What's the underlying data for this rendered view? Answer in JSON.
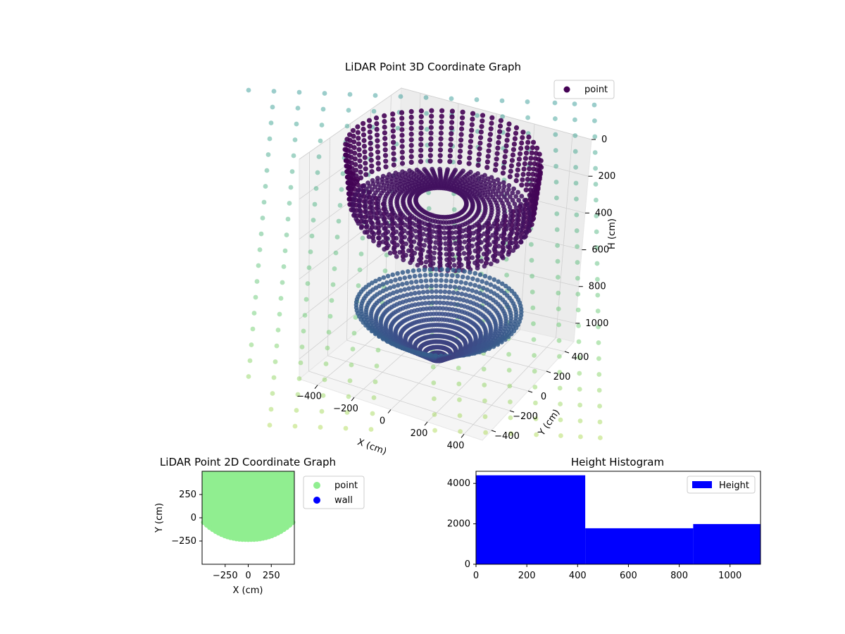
{
  "chart_data": [
    {
      "type": "scatter",
      "title": "LiDAR Point 3D Coordinate Graph",
      "xlabel": "X (cm)",
      "ylabel": "Y (cm)",
      "zlabel": "H (cm)",
      "xticks": [
        "−400",
        "−200",
        "0",
        "200",
        "400"
      ],
      "yticks": [
        "−400",
        "−200",
        "0",
        "200",
        "400"
      ],
      "zticks": [
        "0",
        "200",
        "400",
        "600",
        "800",
        "1000"
      ],
      "zlim": [
        0,
        1100
      ],
      "z_inverted": true,
      "legend": {
        "position": "top-right",
        "entries": [
          "point"
        ]
      },
      "series": [
        {
          "name": "point",
          "colormap": "viridis",
          "description_rings": [
            {
              "h": 0,
              "r": 480
            },
            {
              "h": 120,
              "r": 450
            },
            {
              "h": 260,
              "r": 420
            },
            {
              "h": 780,
              "r": 400
            },
            {
              "h": 900,
              "r": 300
            },
            {
              "h": 1050,
              "r": 80
            }
          ]
        }
      ],
      "grid": true
    },
    {
      "type": "scatter",
      "title": "LiDAR Point 2D Coordinate Graph",
      "xlabel": "X (cm)",
      "ylabel": "Y (cm)",
      "xticks": [
        "−250",
        "0",
        "250"
      ],
      "yticks": [
        "250",
        "0",
        "−250"
      ],
      "xlim": [
        -500,
        500
      ],
      "ylim": [
        -500,
        500
      ],
      "legend": {
        "position": "outside-right",
        "entries": [
          "point",
          "wall"
        ]
      },
      "series": [
        {
          "name": "point",
          "color": "#90ee90"
        },
        {
          "name": "wall",
          "color": "#0000ff"
        }
      ]
    },
    {
      "type": "bar",
      "title": "Height Histogram",
      "xticks": [
        "0",
        "200",
        "400",
        "600",
        "800",
        "1000"
      ],
      "yticks": [
        "0",
        "2000",
        "4000"
      ],
      "xlim": [
        0,
        1120
      ],
      "ylim": [
        0,
        4600
      ],
      "legend": {
        "position": "top-right",
        "entries": [
          "Height"
        ]
      },
      "bins": [
        {
          "from": 0,
          "to": 430,
          "count": 4400
        },
        {
          "from": 430,
          "to": 855,
          "count": 1780
        },
        {
          "from": 855,
          "to": 1120,
          "count": 1990
        }
      ],
      "color": "#0000ff"
    }
  ],
  "colors": {
    "wall_dots": "#9dd6c4",
    "axis": "#000000",
    "pane": "#f2f2f2"
  }
}
